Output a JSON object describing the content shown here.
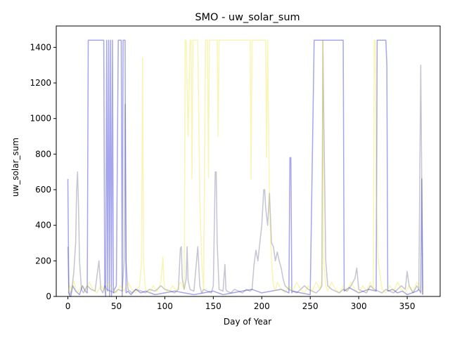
{
  "chart_data": {
    "type": "line",
    "title": "SMO - uw_solar_sum",
    "xlabel": "Day of Year",
    "ylabel": "uw_solar_sum",
    "xlim": [
      -12,
      384
    ],
    "ylim": [
      0,
      1520
    ],
    "x_ticks": [
      0,
      50,
      100,
      150,
      200,
      250,
      300,
      350
    ],
    "y_ticks": [
      0,
      200,
      400,
      600,
      800,
      1000,
      1200,
      1400
    ],
    "grid": false,
    "legend": "none",
    "series": [
      {
        "color": "#0000cc",
        "opacity": 0.35,
        "x": [
          0,
          1,
          2,
          3,
          5,
          8,
          12,
          15,
          18,
          20,
          21,
          22,
          25,
          28,
          30,
          32,
          34,
          36,
          37,
          38,
          39,
          40,
          41,
          42,
          43,
          44,
          45,
          46,
          47,
          48,
          50,
          52,
          53,
          54,
          55,
          56,
          57,
          58,
          59,
          60,
          62,
          65,
          70,
          75,
          80,
          90,
          100,
          110,
          120,
          130,
          140,
          150,
          160,
          170,
          180,
          190,
          200,
          210,
          220,
          228,
          229,
          230,
          231,
          232,
          240,
          250,
          254,
          255,
          256,
          258,
          262,
          264,
          265,
          266,
          270,
          275,
          276,
          277,
          278,
          280,
          282,
          283,
          284,
          285,
          290,
          300,
          310,
          318,
          319,
          320,
          322,
          325,
          327,
          328,
          329,
          330,
          335,
          340,
          345,
          350,
          355,
          360,
          362,
          364,
          365,
          366
        ],
        "y": [
          660,
          20,
          0,
          0,
          60,
          30,
          10,
          60,
          30,
          20,
          1440,
          1440,
          1440,
          1440,
          1440,
          1440,
          1440,
          1440,
          1440,
          50,
          0,
          1440,
          30,
          1440,
          0,
          1440,
          0,
          1440,
          20,
          40,
          60,
          1440,
          1440,
          1440,
          1440,
          0,
          1440,
          1440,
          1440,
          20,
          30,
          10,
          40,
          20,
          30,
          10,
          20,
          30,
          20,
          10,
          20,
          30,
          10,
          20,
          30,
          40,
          20,
          30,
          40,
          20,
          780,
          780,
          20,
          30,
          20,
          10,
          1440,
          1440,
          1440,
          1440,
          1440,
          1440,
          1440,
          1440,
          1440,
          1440,
          1440,
          1440,
          1440,
          1440,
          1440,
          1440,
          1440,
          30,
          50,
          20,
          40,
          30,
          1440,
          1440,
          1440,
          1440,
          1440,
          1440,
          1300,
          30,
          40,
          20,
          30,
          10,
          20,
          30,
          40,
          20,
          660,
          10
        ]
      },
      {
        "color": "#3a3a6a",
        "opacity": 0.3,
        "x": [
          0,
          1,
          2,
          4,
          6,
          8,
          9,
          10,
          11,
          12,
          14,
          16,
          20,
          24,
          28,
          32,
          34,
          36,
          38,
          40,
          44,
          48,
          52,
          56,
          58,
          59,
          60,
          62,
          66,
          70,
          76,
          80,
          84,
          90,
          96,
          100,
          106,
          110,
          114,
          116,
          117,
          118,
          120,
          122,
          123,
          124,
          126,
          130,
          134,
          136,
          137,
          138,
          140,
          144,
          148,
          150,
          152,
          153,
          154,
          156,
          160,
          162,
          163,
          164,
          168,
          172,
          176,
          180,
          184,
          188,
          190,
          192,
          194,
          196,
          198,
          200,
          202,
          203,
          204,
          206,
          208,
          210,
          212,
          214,
          216,
          218,
          220,
          222,
          224,
          228,
          232,
          236,
          240,
          244,
          248,
          252,
          256,
          260,
          262,
          263,
          264,
          266,
          268,
          272,
          276,
          280,
          284,
          288,
          292,
          296,
          298,
          300,
          304,
          308,
          312,
          316,
          320,
          324,
          328,
          332,
          336,
          340,
          344,
          348,
          350,
          352,
          354,
          356,
          358,
          360,
          362,
          364,
          366
        ],
        "y": [
          280,
          20,
          10,
          40,
          130,
          300,
          600,
          700,
          500,
          200,
          40,
          20,
          60,
          40,
          30,
          200,
          40,
          20,
          60,
          40,
          30,
          20,
          40,
          30,
          200,
          1080,
          200,
          40,
          20,
          40,
          30,
          20,
          40,
          30,
          60,
          40,
          30,
          20,
          40,
          270,
          280,
          100,
          40,
          100,
          280,
          90,
          40,
          30,
          280,
          60,
          40,
          20,
          40,
          30,
          20,
          60,
          700,
          700,
          300,
          40,
          30,
          180,
          40,
          30,
          20,
          40,
          30,
          20,
          40,
          30,
          40,
          180,
          260,
          200,
          300,
          400,
          600,
          600,
          500,
          400,
          580,
          300,
          280,
          200,
          250,
          200,
          160,
          100,
          60,
          40,
          30,
          20,
          40,
          60,
          40,
          30,
          20,
          40,
          60,
          1440,
          1000,
          200,
          60,
          40,
          30,
          20,
          40,
          30,
          60,
          100,
          160,
          40,
          30,
          20,
          60,
          40,
          30,
          20,
          40,
          30,
          20,
          40,
          60,
          40,
          140,
          60,
          40,
          20,
          40,
          60,
          40,
          1300,
          10
        ]
      },
      {
        "color": "#e8e020",
        "opacity": 0.32,
        "x": [
          0,
          2,
          4,
          6,
          8,
          10,
          14,
          18,
          22,
          26,
          30,
          34,
          38,
          42,
          46,
          50,
          54,
          58,
          62,
          66,
          70,
          74,
          76,
          77,
          78,
          80,
          84,
          88,
          92,
          96,
          98,
          99,
          100,
          104,
          108,
          112,
          116,
          120,
          121,
          122,
          124,
          126,
          127,
          128,
          129,
          130,
          132,
          134,
          136,
          138,
          140,
          142,
          144,
          145,
          146,
          148,
          150,
          152,
          153,
          154,
          155,
          156,
          158,
          160,
          164,
          168,
          172,
          176,
          180,
          184,
          188,
          189,
          190,
          192,
          194,
          196,
          198,
          200,
          202,
          204,
          205,
          206,
          208,
          210,
          212,
          214,
          216,
          220,
          224,
          228,
          232,
          236,
          240,
          244,
          248,
          252,
          256,
          260,
          262,
          263,
          264,
          266,
          268,
          272,
          276,
          280,
          284,
          288,
          292,
          296,
          300,
          304,
          308,
          312,
          315,
          316,
          317,
          318,
          320,
          324,
          328,
          332,
          336,
          340,
          344,
          348,
          352,
          356,
          360,
          364,
          366
        ],
        "y": [
          20,
          60,
          30,
          90,
          40,
          20,
          60,
          30,
          80,
          40,
          20,
          60,
          30,
          80,
          40,
          20,
          60,
          30,
          80,
          40,
          20,
          60,
          200,
          1340,
          200,
          40,
          20,
          60,
          30,
          80,
          220,
          100,
          40,
          20,
          60,
          30,
          80,
          40,
          1440,
          1440,
          900,
          1440,
          1440,
          660,
          1440,
          1440,
          1440,
          1440,
          560,
          200,
          30,
          1440,
          1440,
          670,
          1440,
          1440,
          1440,
          1440,
          1440,
          1440,
          900,
          1440,
          1440,
          1440,
          1440,
          1440,
          1440,
          1440,
          1440,
          1440,
          1440,
          660,
          1440,
          1440,
          1440,
          1440,
          1440,
          1440,
          1440,
          1440,
          780,
          1440,
          500,
          200,
          60,
          30,
          80,
          40,
          20,
          60,
          30,
          80,
          40,
          20,
          60,
          30,
          80,
          40,
          100,
          1440,
          200,
          60,
          30,
          80,
          40,
          20,
          60,
          30,
          80,
          40,
          20,
          60,
          30,
          80,
          40,
          1440,
          1440,
          600,
          200,
          40,
          20,
          60,
          30,
          80,
          40,
          20,
          60,
          30,
          80,
          40,
          20
        ]
      }
    ]
  }
}
